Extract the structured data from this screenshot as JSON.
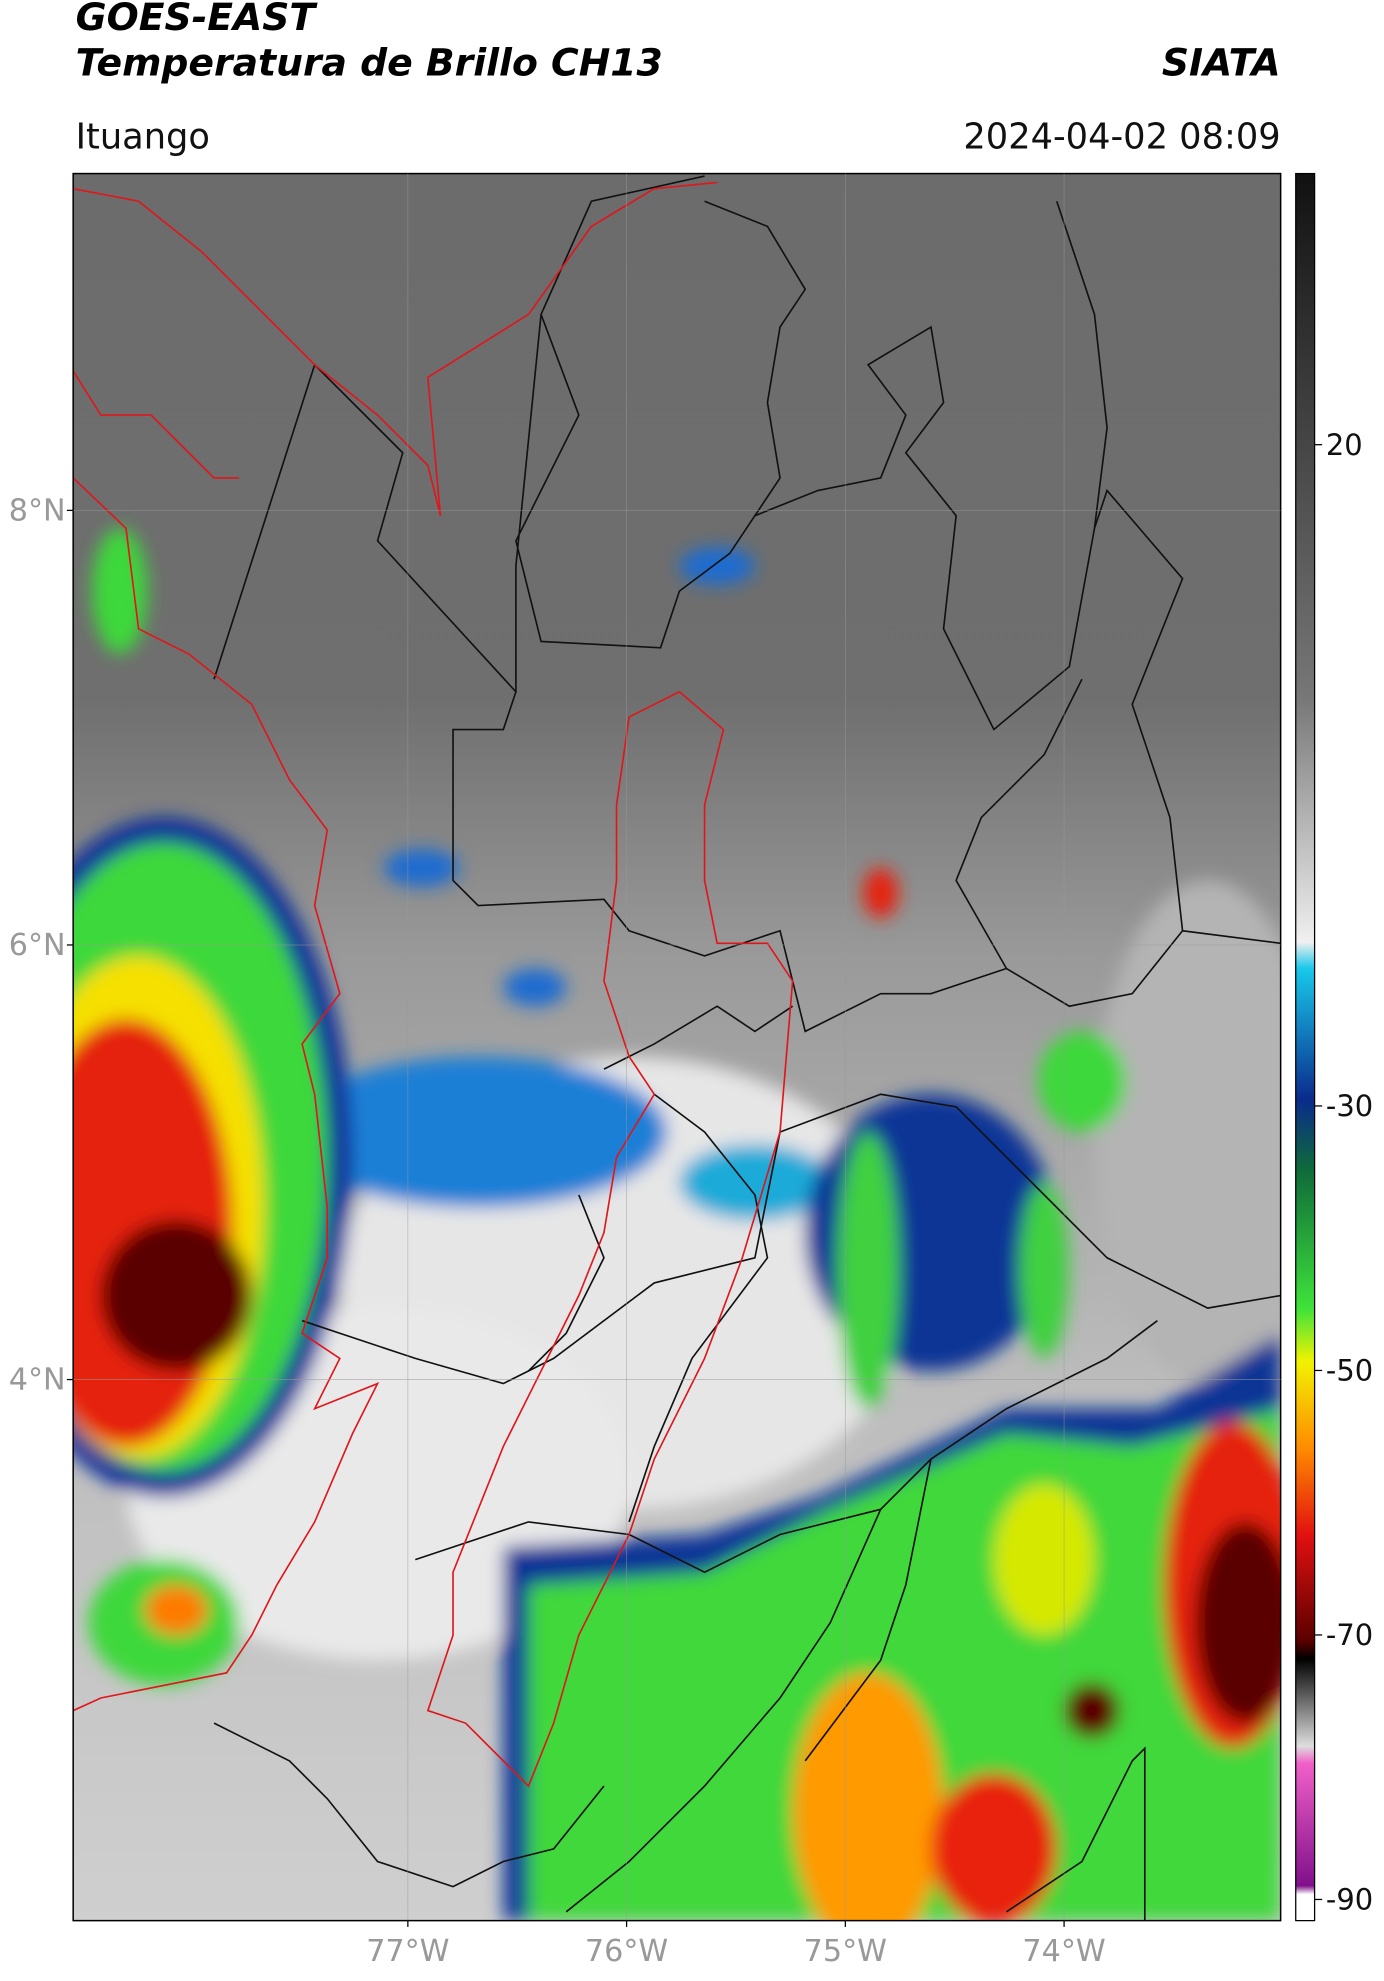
{
  "header": {
    "title_line1": "GOES-EAST",
    "title_line2": "Temperatura de Brillo CH13",
    "org": "SIATA",
    "location": "Ituango",
    "datetime": "2024-04-02 08:09"
  },
  "map": {
    "lat_ticks": [
      {
        "value": 8,
        "label": "8°N"
      },
      {
        "value": 6,
        "label": "6°N"
      },
      {
        "value": 4,
        "label": "4°N"
      }
    ],
    "lon_ticks": [
      {
        "value": -77,
        "label": "77°W"
      },
      {
        "value": -76,
        "label": "76°W"
      },
      {
        "value": -75,
        "label": "75°W"
      },
      {
        "value": -74,
        "label": "74°W"
      }
    ],
    "latlim": [
      1.51,
      9.55
    ],
    "lonlim": [
      -78.53,
      -73.01
    ]
  },
  "colorbar": {
    "lim": [
      -91.6,
      40.5
    ],
    "ticks": [
      20,
      -30,
      -50,
      -70,
      -90
    ]
  }
}
